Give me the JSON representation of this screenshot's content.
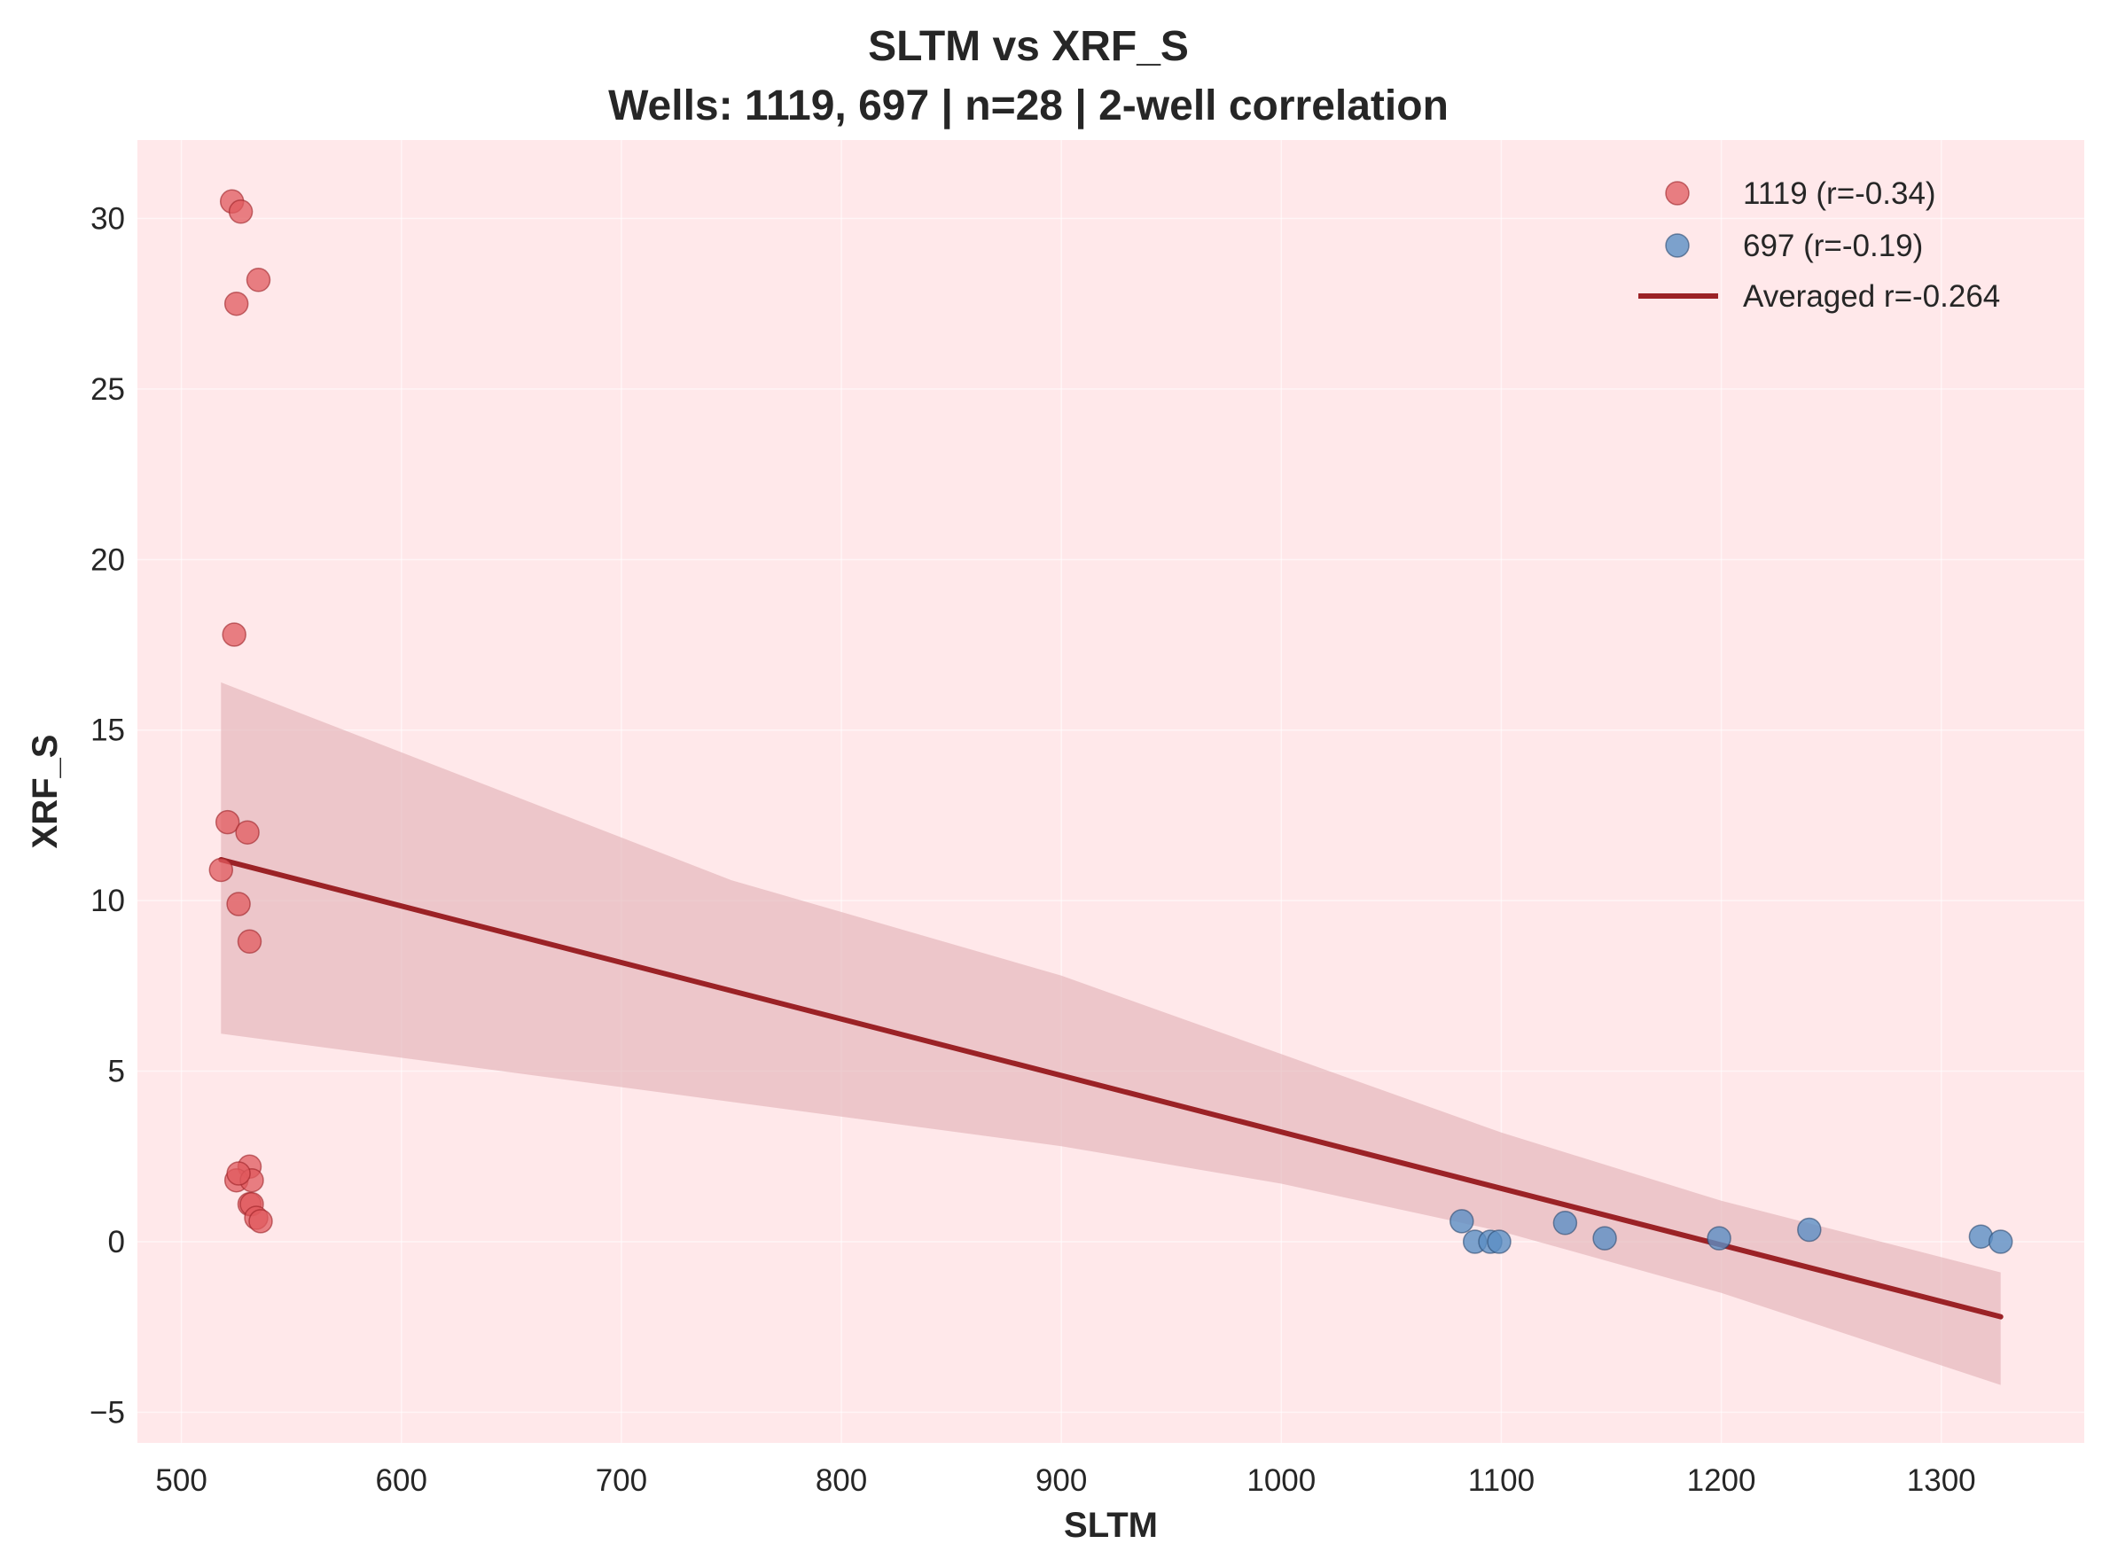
{
  "chart_data": {
    "type": "scatter",
    "title": "SLTM vs XRF_S",
    "subtitle": "Wells: 1119, 697 | n=28 | 2-well correlation",
    "xlabel": "SLTM",
    "ylabel": "XRF_S",
    "xlim": [
      480,
      1365
    ],
    "ylim": [
      -5.9,
      32.3
    ],
    "xticks": [
      500,
      600,
      700,
      800,
      900,
      1000,
      1100,
      1200,
      1300
    ],
    "yticks": [
      -5,
      0,
      5,
      10,
      15,
      20,
      25,
      30
    ],
    "ytick_labels": [
      "−5",
      "0",
      "5",
      "10",
      "15",
      "20",
      "25",
      "30"
    ],
    "grid": true,
    "legend_position": "upper-right",
    "colors": {
      "background": "#ffe8ea",
      "series_1119": "#e05a5e",
      "series_697": "#5b8fc4",
      "fit_line": "#9b2226",
      "band": "#e3b3b8"
    },
    "series": [
      {
        "name": "1119 (r=-0.34)",
        "x": [
          523,
          527,
          525,
          535,
          524,
          521,
          530,
          518,
          526,
          531,
          531,
          525,
          532,
          526,
          531,
          532,
          534,
          536
        ],
        "y": [
          30.5,
          30.2,
          27.5,
          28.2,
          17.8,
          12.3,
          12.0,
          10.9,
          9.9,
          8.8,
          2.2,
          1.8,
          1.8,
          2.0,
          1.1,
          1.1,
          0.7,
          0.6
        ]
      },
      {
        "name": "697 (r=-0.19)",
        "x": [
          1082,
          1088,
          1095,
          1099,
          1129,
          1147,
          1199,
          1240,
          1318,
          1327
        ],
        "y": [
          0.6,
          0.0,
          0.0,
          0.0,
          0.55,
          0.1,
          0.1,
          0.35,
          0.15,
          0.0
        ]
      }
    ],
    "fit": {
      "name": "Averaged r=-0.264",
      "x": [
        518,
        1327
      ],
      "y": [
        11.2,
        -2.2
      ]
    },
    "confidence_band": {
      "x": [
        518,
        750,
        900,
        1000,
        1100,
        1200,
        1327
      ],
      "upper": [
        16.4,
        10.6,
        7.8,
        5.5,
        3.2,
        1.2,
        -0.9
      ],
      "lower": [
        6.1,
        4.1,
        2.8,
        1.7,
        0.3,
        -1.5,
        -4.2
      ]
    }
  }
}
